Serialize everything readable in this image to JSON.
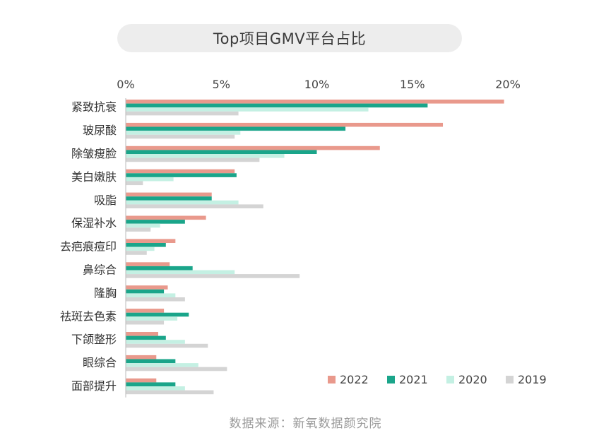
{
  "chart_data": {
    "type": "bar",
    "orientation": "horizontal",
    "title": "Top项目GMV平台占比",
    "source": "数据来源：新氧数据颜究院",
    "xlim": [
      0,
      20
    ],
    "x_ticks": [
      "0%",
      "5%",
      "10%",
      "15%",
      "20%"
    ],
    "x_tick_values": [
      0,
      5,
      10,
      15,
      20
    ],
    "legend_position": "bottom-right",
    "categories": [
      "紧致抗衰",
      "玻尿酸",
      "除皱瘦脸",
      "美白嫩肤",
      "吸脂",
      "保湿补水",
      "去疤痕痘印",
      "鼻综合",
      "隆胸",
      "祛斑去色素",
      "下颌整形",
      "眼综合",
      "面部提升"
    ],
    "series": [
      {
        "name": "2022",
        "color": "#e9998c",
        "values": [
          19.8,
          16.6,
          13.3,
          5.7,
          4.5,
          4.2,
          2.6,
          2.3,
          2.2,
          2.0,
          1.7,
          1.6,
          1.6
        ]
      },
      {
        "name": "2021",
        "color": "#1aa58a",
        "values": [
          15.8,
          11.5,
          10.0,
          5.8,
          4.5,
          3.1,
          2.1,
          3.5,
          2.0,
          3.3,
          2.1,
          2.6,
          2.6
        ]
      },
      {
        "name": "2020",
        "color": "#c4f0e3",
        "values": [
          12.7,
          6.0,
          8.3,
          2.5,
          5.9,
          1.8,
          1.5,
          5.7,
          2.6,
          2.7,
          3.1,
          3.8,
          3.1
        ]
      },
      {
        "name": "2019",
        "color": "#d4d4d4",
        "values": [
          5.9,
          5.7,
          7.0,
          0.9,
          7.2,
          1.3,
          1.1,
          9.1,
          3.1,
          2.0,
          4.3,
          5.3,
          4.6
        ]
      }
    ]
  }
}
